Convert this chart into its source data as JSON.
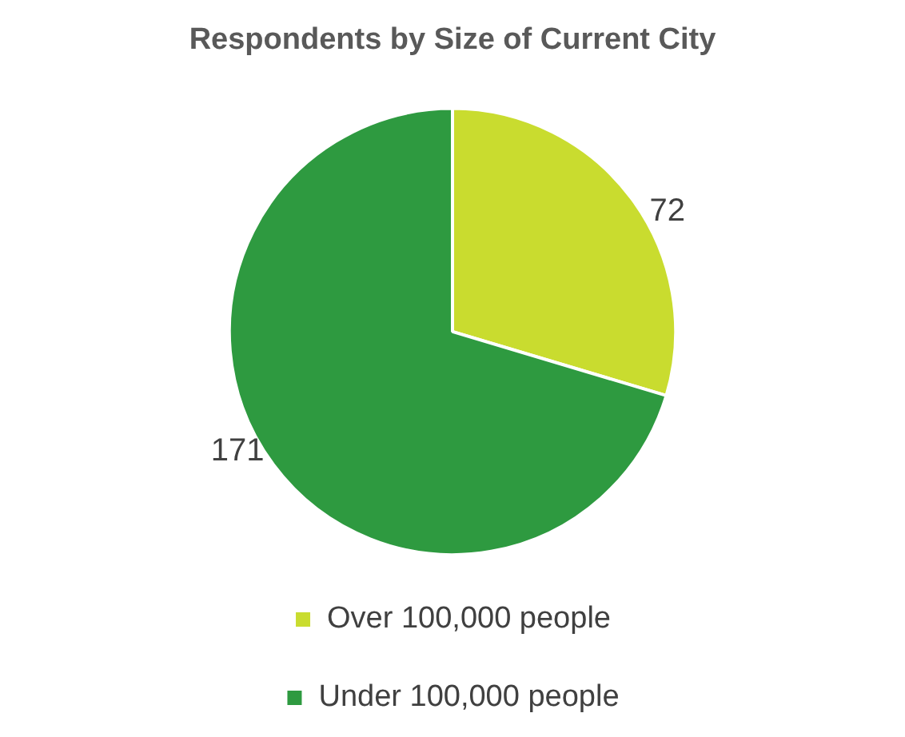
{
  "chart_data": {
    "type": "pie",
    "title": "Respondents by Size of Current City",
    "categories": [
      "Over 100,000 people",
      "Under 100,000 people"
    ],
    "values": [
      72,
      171
    ],
    "colors": [
      "#c9dc2f",
      "#2e9a40"
    ],
    "data_labels": true,
    "legend": "bottom"
  }
}
